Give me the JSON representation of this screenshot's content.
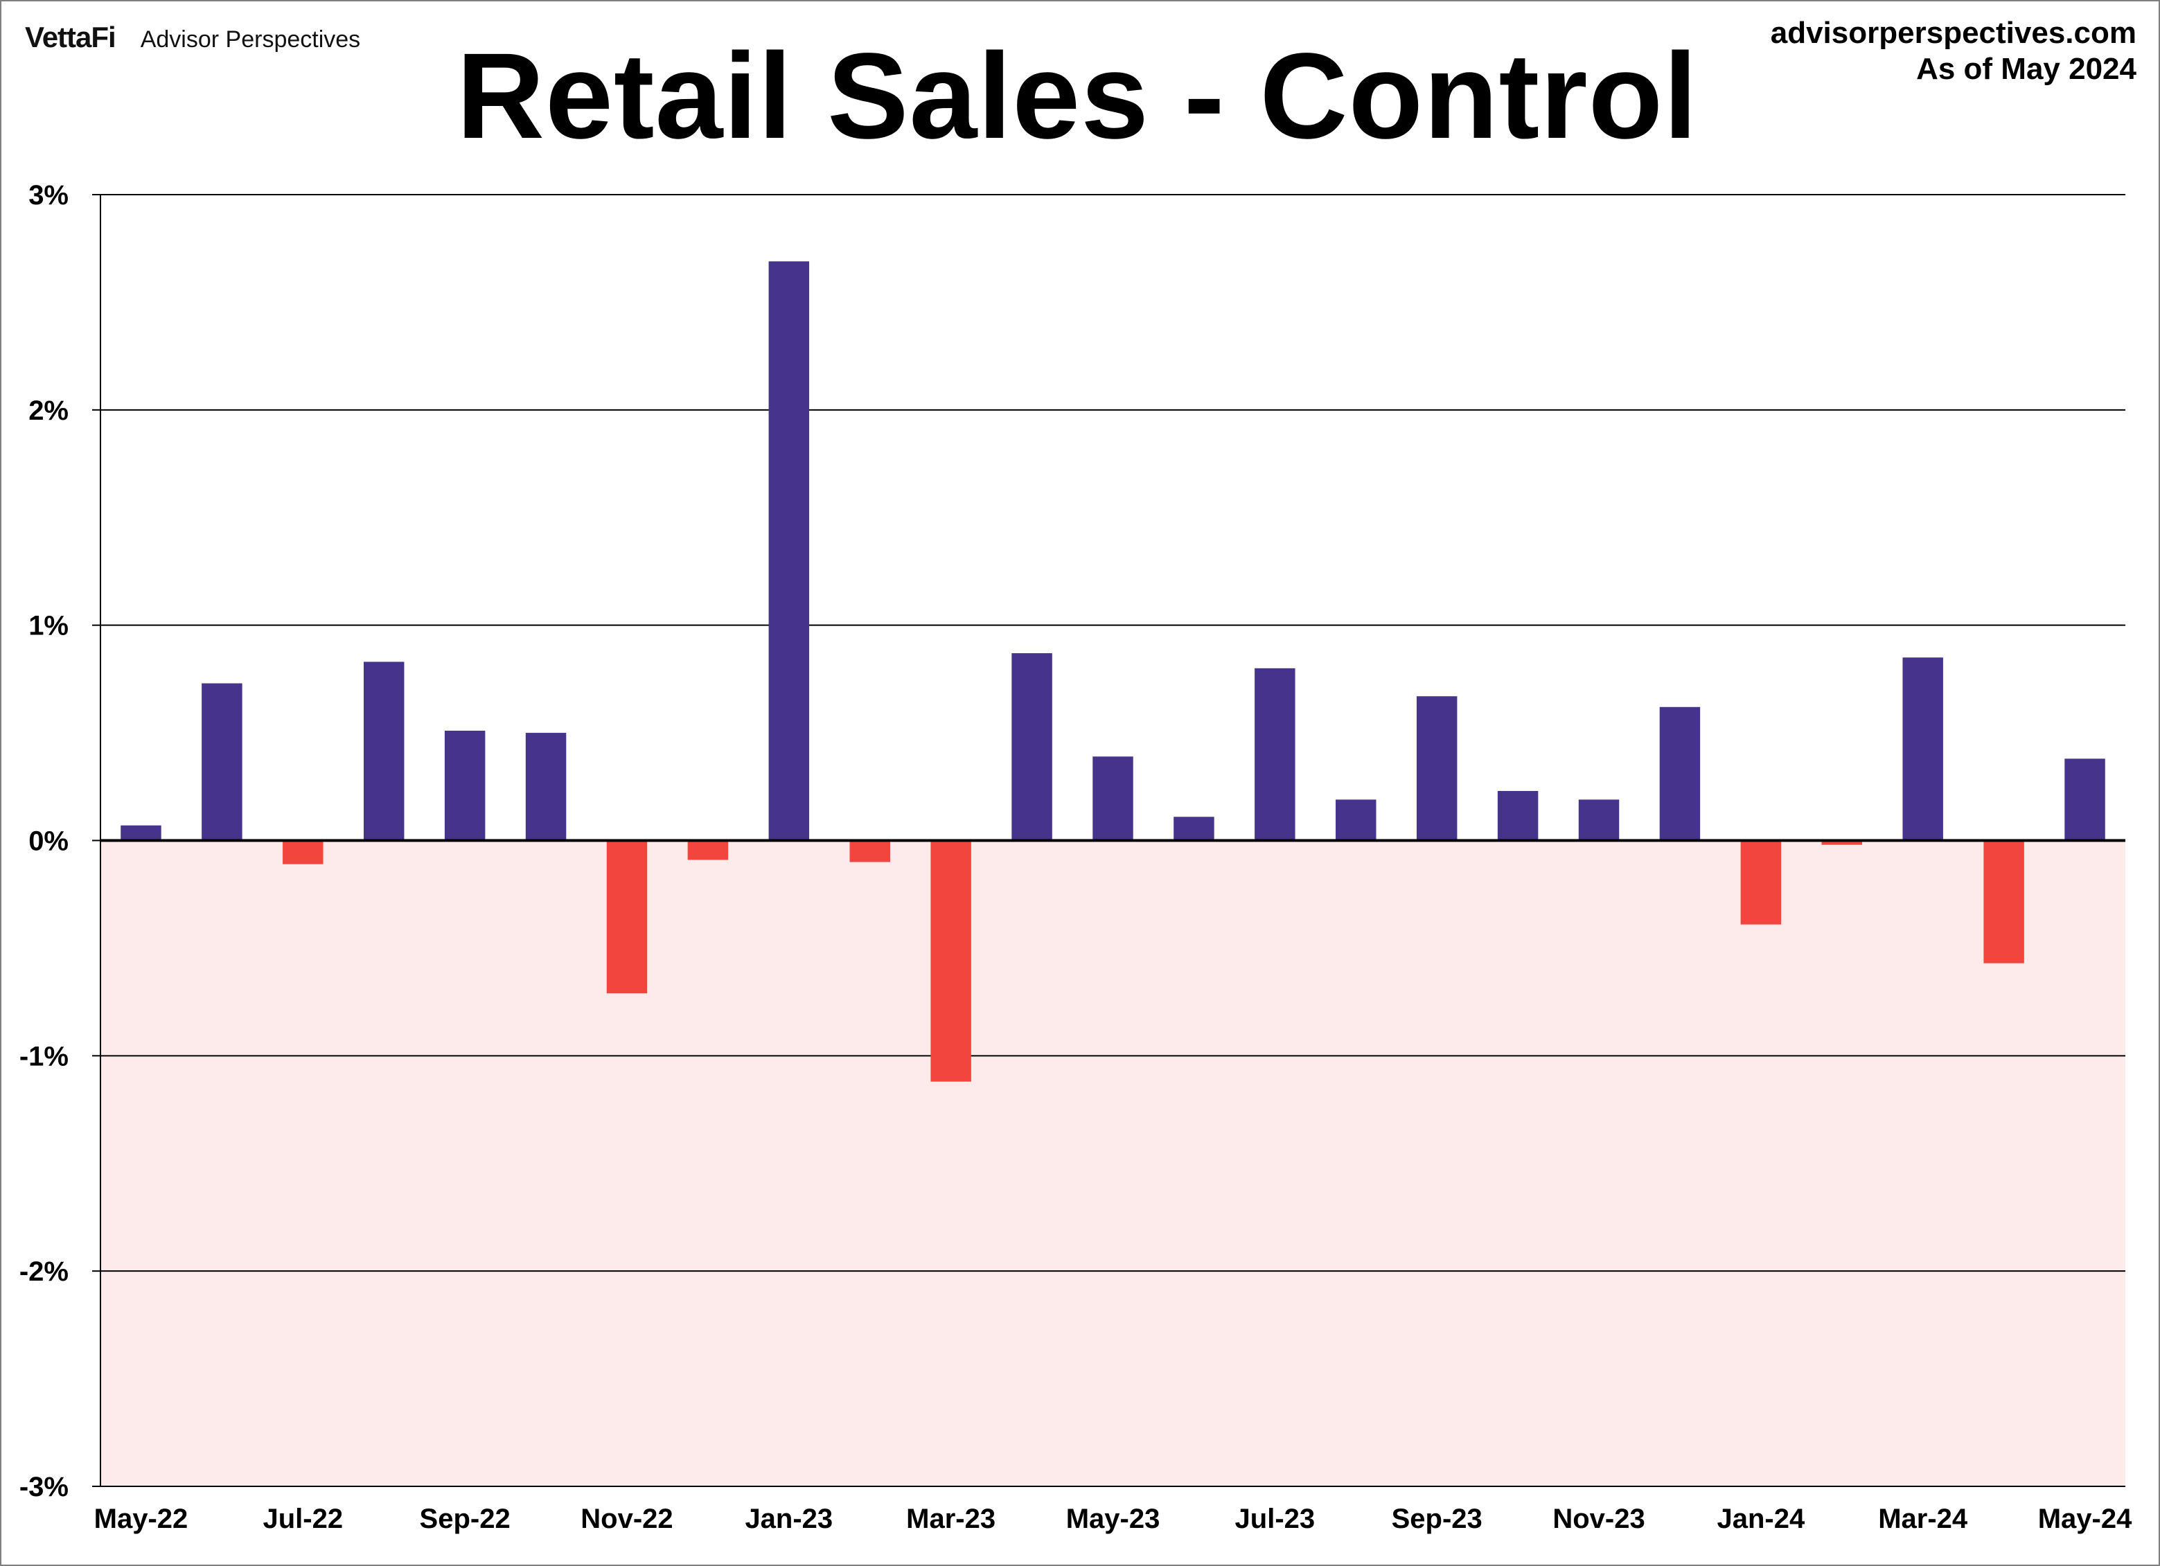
{
  "header": {
    "brand_logo": "VettaFi",
    "brand_name": "Advisor Perspectives",
    "title": "Retail Sales - Control",
    "source_url": "advisorperspectives.com",
    "as_of": "As of May 2024"
  },
  "colors": {
    "positive": "#46338C",
    "negative": "#F2453D",
    "negative_region": "#FDEAEA",
    "grid": "#000000"
  },
  "chart_data": {
    "type": "bar",
    "title": "Retail Sales - Control",
    "xlabel": "",
    "ylabel": "",
    "ylim": [
      -3,
      3
    ],
    "y_ticks": [
      {
        "value": 3,
        "label": "3%"
      },
      {
        "value": 2,
        "label": "2%"
      },
      {
        "value": 1,
        "label": "1%"
      },
      {
        "value": 0,
        "label": "0%"
      },
      {
        "value": -1,
        "label": "-1%"
      },
      {
        "value": -2,
        "label": "-2%"
      },
      {
        "value": -3,
        "label": "-3%"
      }
    ],
    "grid": true,
    "negative_region_shaded": true,
    "categories": [
      "May-22",
      "Jun-22",
      "Jul-22",
      "Aug-22",
      "Sep-22",
      "Oct-22",
      "Nov-22",
      "Dec-22",
      "Jan-23",
      "Feb-23",
      "Mar-23",
      "Apr-23",
      "May-23",
      "Jun-23",
      "Jul-23",
      "Aug-23",
      "Sep-23",
      "Oct-23",
      "Nov-23",
      "Dec-23",
      "Jan-24",
      "Feb-24",
      "Mar-24",
      "Apr-24",
      "May-24"
    ],
    "x_tick_labels": [
      "May-22",
      "",
      "Jul-22",
      "",
      "Sep-22",
      "",
      "Nov-22",
      "",
      "Jan-23",
      "",
      "Mar-23",
      "",
      "May-23",
      "",
      "Jul-23",
      "",
      "Sep-23",
      "",
      "Nov-23",
      "",
      "Jan-24",
      "",
      "Mar-24",
      "",
      "May-24"
    ],
    "values": [
      0.07,
      0.73,
      -0.11,
      0.83,
      0.51,
      0.5,
      -0.71,
      -0.09,
      2.69,
      -0.1,
      -1.12,
      0.87,
      0.39,
      0.11,
      0.8,
      0.19,
      0.67,
      0.23,
      0.19,
      0.62,
      -0.39,
      -0.02,
      0.85,
      -0.57,
      0.38
    ]
  }
}
